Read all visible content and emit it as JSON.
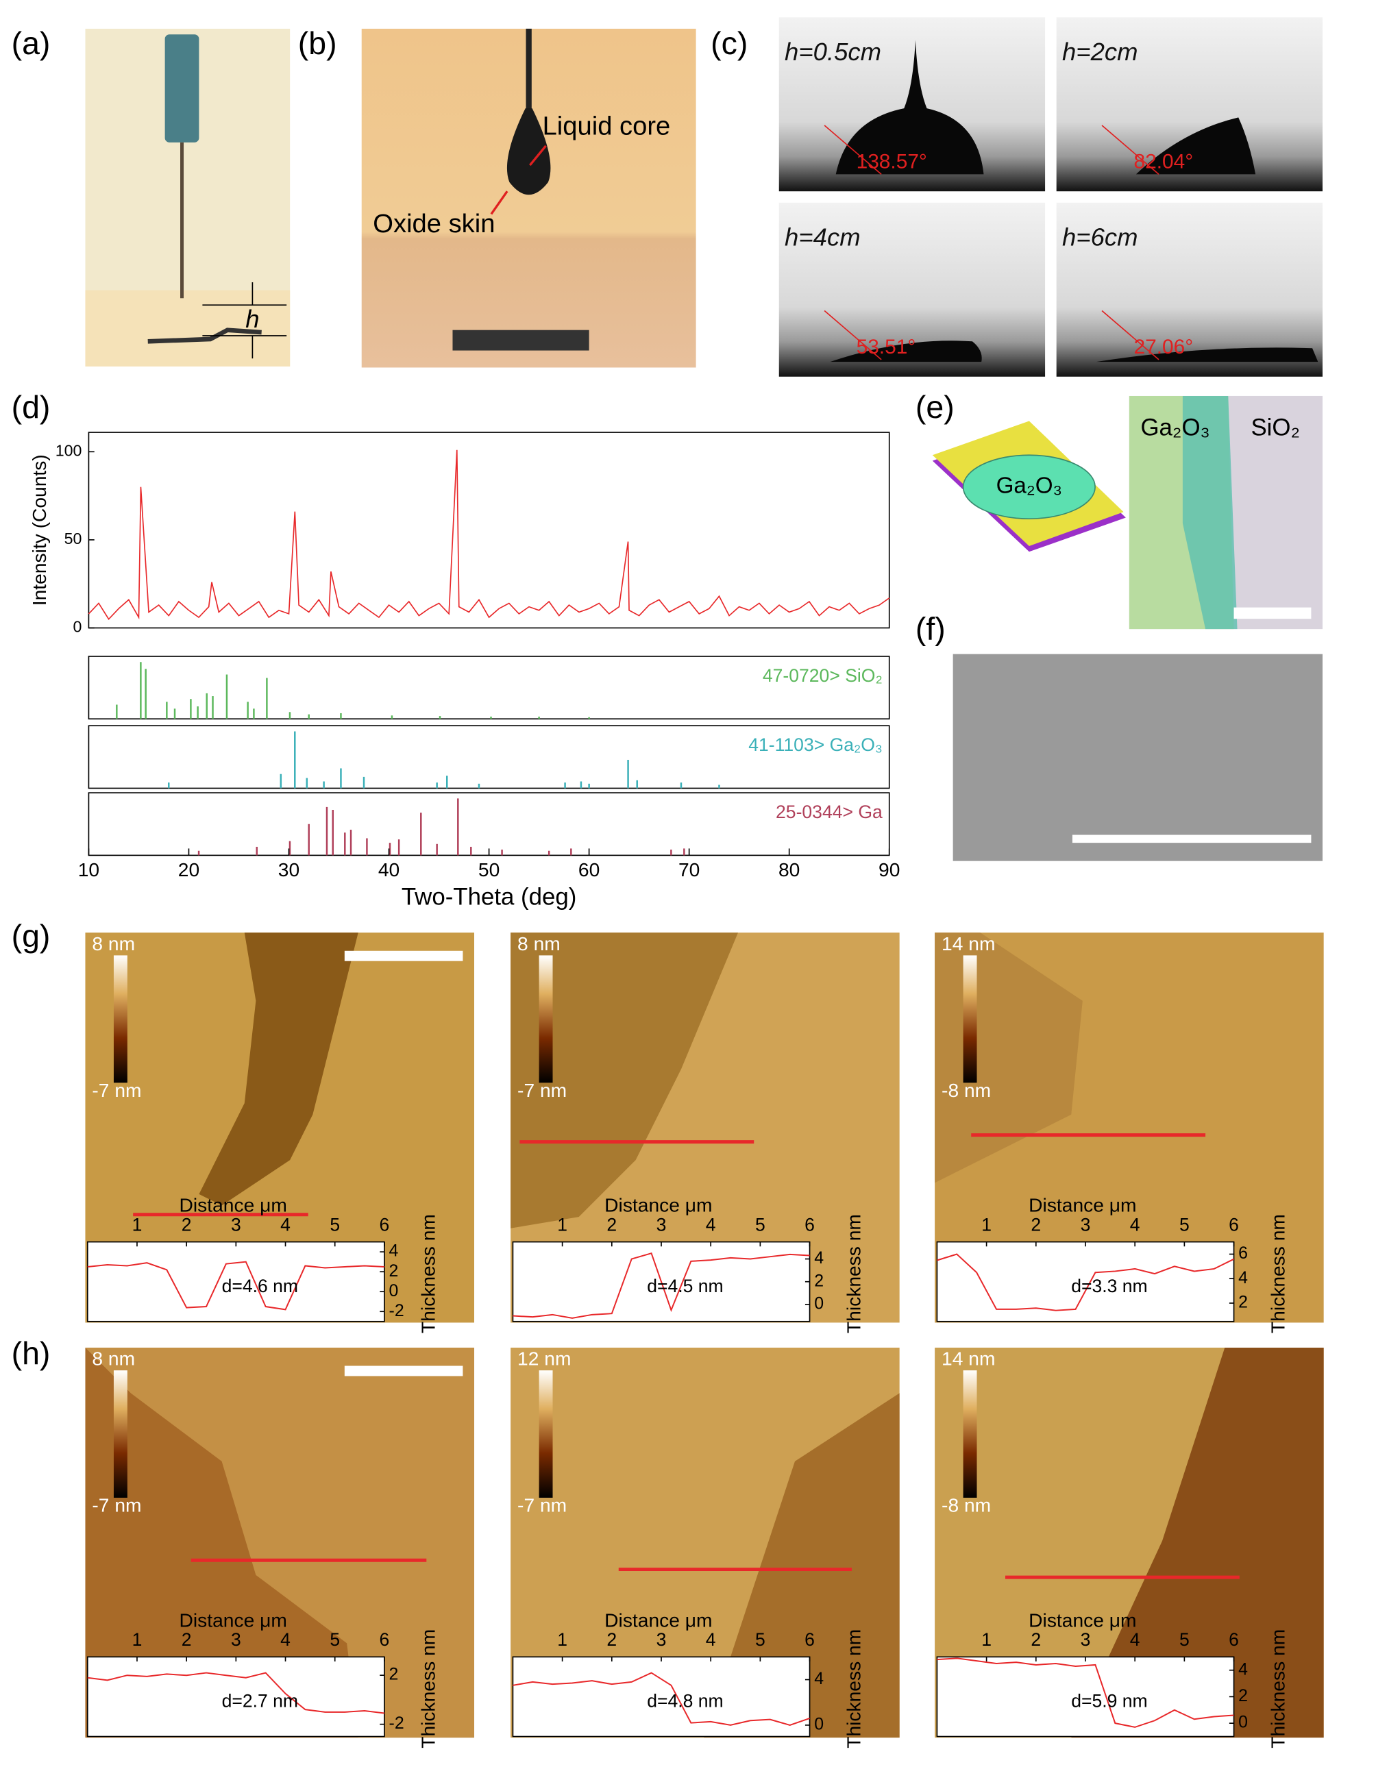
{
  "figure": {
    "a": {
      "label": "(a)",
      "h": "h"
    },
    "b": {
      "label": "(b)",
      "liquid_core": "Liquid core",
      "oxide_skin": "Oxide skin"
    },
    "c": {
      "label": "(c)",
      "drops": [
        {
          "height": "h=0.5cm",
          "angle": "138.57°"
        },
        {
          "height": "h=2cm",
          "angle": "82.04°"
        },
        {
          "height": "h=4cm",
          "angle": "53.51°"
        },
        {
          "height": "h=6cm",
          "angle": "27.06°"
        }
      ]
    },
    "d": {
      "label": "(d)"
    },
    "e": {
      "label": "(e)",
      "drop": "Ga₂O₃",
      "left": "Ga₂O₃",
      "right": "SiO₂"
    },
    "f": {
      "label": "(f)"
    },
    "g": {
      "label": "(g)"
    },
    "h": {
      "label": "(h)"
    }
  },
  "chart_data": [
    {
      "type": "line",
      "xlabel": "Two-Theta (deg)",
      "ylabel": "Intensity (Counts)",
      "xlim": [
        10,
        90
      ],
      "xticks": [
        10,
        20,
        30,
        40,
        50,
        60,
        70,
        80,
        90
      ],
      "ylim": [
        0,
        111
      ],
      "yticks": [
        0,
        50,
        100
      ],
      "x": [
        10,
        11,
        12,
        13,
        14,
        15,
        15.2,
        16,
        17,
        18,
        19,
        20,
        21,
        22,
        22.3,
        23,
        24,
        25,
        26,
        27,
        28,
        29,
        30,
        30.6,
        31,
        32,
        33,
        34,
        34.2,
        35,
        36,
        37,
        38,
        39,
        40,
        41,
        42,
        43,
        44,
        45,
        46,
        46.8,
        47,
        48,
        49,
        50,
        51,
        52,
        53,
        54,
        55,
        56,
        57,
        58,
        59,
        60,
        61,
        62,
        63,
        63.9,
        64,
        65,
        66,
        67,
        68,
        69,
        70,
        71,
        72,
        73,
        74,
        75,
        76,
        77,
        78,
        79,
        80,
        81,
        82,
        83,
        84,
        85,
        86,
        87,
        88,
        89,
        90
      ],
      "series": [
        {
          "color": "#e8282a",
          "values": [
            8,
            14,
            5,
            11,
            16,
            6,
            80,
            9,
            13,
            7,
            15,
            10,
            6,
            12,
            26,
            9,
            14,
            7,
            11,
            15,
            6,
            10,
            8,
            66,
            13,
            9,
            16,
            7,
            32,
            12,
            8,
            14,
            10,
            6,
            13,
            9,
            15,
            7,
            11,
            14,
            8,
            101,
            12,
            9,
            16,
            6,
            11,
            14,
            8,
            12,
            10,
            15,
            7,
            13,
            9,
            11,
            14,
            8,
            12,
            49,
            10,
            7,
            13,
            16,
            9,
            12,
            15,
            8,
            11,
            18,
            7,
            12,
            10,
            14,
            8,
            13,
            9,
            11,
            15,
            7,
            12,
            10,
            14,
            8,
            11,
            13,
            17
          ]
        }
      ]
    },
    {
      "type": "bar",
      "title": "47-0720> SiO₂",
      "color": "#5cb85c",
      "xlim": [
        10,
        90
      ],
      "ylim": [
        0,
        100
      ],
      "x": [
        12.8,
        15.2,
        15.7,
        17.8,
        18.6,
        20.2,
        20.9,
        21.8,
        22.4,
        23.8,
        25.9,
        26.5,
        27.8,
        30.1,
        32.0,
        35.2,
        40.3,
        45.1,
        50.2,
        55.0,
        60.0
      ],
      "values": [
        25,
        100,
        88,
        30,
        18,
        35,
        22,
        45,
        40,
        78,
        30,
        18,
        72,
        12,
        8,
        10,
        6,
        5,
        4,
        4,
        3
      ]
    },
    {
      "type": "bar",
      "title": "41-1103> Ga₂O₃",
      "color": "#3ab0b8",
      "xlim": [
        10,
        90
      ],
      "ylim": [
        0,
        100
      ],
      "x": [
        18.0,
        29.2,
        30.6,
        31.8,
        33.5,
        35.2,
        37.5,
        44.8,
        45.8,
        49.0,
        57.6,
        59.2,
        60.0,
        63.9,
        64.8,
        69.2,
        73.0
      ],
      "values": [
        10,
        25,
        100,
        18,
        12,
        35,
        20,
        10,
        22,
        8,
        10,
        12,
        8,
        50,
        14,
        10,
        6
      ]
    },
    {
      "type": "bar",
      "title": "25-0344> Ga",
      "color": "#b0405a",
      "xlim": [
        10,
        90
      ],
      "ylim": [
        0,
        100
      ],
      "x": [
        21.0,
        26.8,
        30.1,
        32.0,
        33.8,
        34.4,
        35.6,
        36.2,
        37.8,
        40.1,
        41.0,
        43.2,
        44.8,
        46.9,
        48.2,
        51.3,
        56.0,
        58.2,
        68.2,
        69.5
      ],
      "values": [
        8,
        15,
        25,
        55,
        85,
        80,
        40,
        45,
        30,
        22,
        28,
        75,
        20,
        100,
        15,
        10,
        8,
        12,
        10,
        12
      ]
    },
    {
      "type": "line",
      "colorbar_max": "8 nm",
      "colorbar_min": "-7 nm",
      "xlabel": "Distance μm",
      "ylabel": "Thickness nm",
      "annotation": "d=4.6 nm",
      "xlim": [
        0,
        6
      ],
      "xticks": [
        1,
        2,
        3,
        4,
        5,
        6
      ],
      "ylim": [
        -3,
        5
      ],
      "yticks": [
        -2,
        0,
        2,
        4
      ],
      "x": [
        0,
        0.4,
        0.8,
        1.2,
        1.6,
        2.0,
        2.4,
        2.8,
        3.2,
        3.6,
        4.0,
        4.4,
        4.8,
        5.2,
        5.6,
        6.0
      ],
      "series": [
        {
          "color": "#e8282a",
          "values": [
            2.5,
            2.7,
            2.6,
            2.9,
            2.2,
            -1.6,
            -1.5,
            2.8,
            3.0,
            -1.5,
            -1.8,
            2.6,
            2.4,
            2.5,
            2.6,
            2.5
          ]
        }
      ]
    },
    {
      "type": "line",
      "colorbar_max": "8 nm",
      "colorbar_min": "-7 nm",
      "xlabel": "Distance μm",
      "ylabel": "Thickness nm",
      "annotation": "d=4.5 nm",
      "xlim": [
        0,
        6
      ],
      "xticks": [
        1,
        2,
        3,
        4,
        5,
        6
      ],
      "ylim": [
        -1.5,
        5.5
      ],
      "yticks": [
        0,
        2,
        4
      ],
      "x": [
        0,
        0.4,
        0.8,
        1.2,
        1.6,
        2.0,
        2.4,
        2.8,
        3.2,
        3.6,
        4.0,
        4.4,
        4.8,
        5.2,
        5.6,
        6.0
      ],
      "series": [
        {
          "color": "#e8282a",
          "values": [
            -1,
            -1.1,
            -0.9,
            -1.2,
            -0.9,
            -0.8,
            4.0,
            4.5,
            -0.5,
            3.8,
            3.9,
            4.1,
            4.0,
            4.2,
            4.4,
            4.3
          ]
        }
      ]
    },
    {
      "type": "line",
      "colorbar_max": "14 nm",
      "colorbar_min": "-8 nm",
      "xlabel": "Distance μm",
      "ylabel": "Thickness nm",
      "annotation": "d=3.3 nm",
      "xlim": [
        0,
        6
      ],
      "xticks": [
        1,
        2,
        3,
        4,
        5,
        6
      ],
      "ylim": [
        0.5,
        7
      ],
      "yticks": [
        2,
        4,
        6
      ],
      "x": [
        0,
        0.4,
        0.8,
        1.2,
        1.6,
        2.0,
        2.4,
        2.8,
        3.2,
        3.6,
        4.0,
        4.4,
        4.8,
        5.2,
        5.6,
        6.0
      ],
      "series": [
        {
          "color": "#e8282a",
          "values": [
            5.5,
            6.0,
            4.5,
            1.5,
            1.5,
            1.6,
            1.4,
            1.5,
            4.5,
            4.6,
            4.8,
            4.4,
            5.0,
            4.6,
            4.8,
            5.6
          ]
        }
      ]
    },
    {
      "type": "line",
      "colorbar_max": "8 nm",
      "colorbar_min": "-7 nm",
      "xlabel": "Distance μm",
      "ylabel": "Thickness nm",
      "annotation": "d=2.7 nm",
      "xlim": [
        0,
        6
      ],
      "xticks": [
        1,
        2,
        3,
        4,
        5,
        6
      ],
      "ylim": [
        -3,
        3.5
      ],
      "yticks": [
        -2,
        2
      ],
      "x": [
        0,
        0.4,
        0.8,
        1.2,
        1.6,
        2.0,
        2.4,
        2.8,
        3.2,
        3.6,
        4.0,
        4.4,
        4.8,
        5.2,
        5.6,
        6.0
      ],
      "series": [
        {
          "color": "#e8282a",
          "values": [
            1.8,
            1.6,
            2.0,
            1.9,
            2.1,
            2.0,
            2.2,
            2.0,
            1.8,
            2.2,
            0.5,
            -0.8,
            -1.0,
            -1.0,
            -0.9,
            -1.1
          ]
        }
      ]
    },
    {
      "type": "line",
      "colorbar_max": "12 nm",
      "colorbar_min": "-7 nm",
      "xlabel": "Distance μm",
      "ylabel": "Thickness nm",
      "annotation": "d=4.8 nm",
      "xlim": [
        0,
        6
      ],
      "xticks": [
        1,
        2,
        3,
        4,
        5,
        6
      ],
      "ylim": [
        -1,
        6
      ],
      "yticks": [
        0,
        4
      ],
      "x": [
        0,
        0.4,
        0.8,
        1.2,
        1.6,
        2.0,
        2.4,
        2.8,
        3.2,
        3.6,
        4.0,
        4.4,
        4.8,
        5.2,
        5.6,
        6.0
      ],
      "series": [
        {
          "color": "#e8282a",
          "values": [
            3.5,
            3.8,
            3.6,
            3.7,
            3.9,
            3.6,
            3.8,
            4.6,
            3.5,
            0.2,
            0.3,
            0.0,
            0.4,
            0.5,
            0.0,
            0.6
          ]
        }
      ]
    },
    {
      "type": "line",
      "colorbar_max": "14 nm",
      "colorbar_min": "-8 nm",
      "xlabel": "Distance μm",
      "ylabel": "Thickness nm",
      "annotation": "d=5.9 nm",
      "xlim": [
        0,
        6
      ],
      "xticks": [
        1,
        2,
        3,
        4,
        5,
        6
      ],
      "ylim": [
        -1,
        5
      ],
      "yticks": [
        0,
        2,
        4
      ],
      "x": [
        0,
        0.4,
        0.8,
        1.2,
        1.6,
        2.0,
        2.4,
        2.8,
        3.2,
        3.6,
        4.0,
        4.4,
        4.8,
        5.2,
        5.6,
        6.0
      ],
      "series": [
        {
          "color": "#e8282a",
          "values": [
            4.8,
            4.9,
            4.7,
            4.5,
            4.6,
            4.4,
            4.5,
            4.3,
            4.4,
            0.0,
            -0.3,
            0.2,
            1.0,
            0.3,
            0.5,
            0.6
          ]
        }
      ]
    }
  ]
}
